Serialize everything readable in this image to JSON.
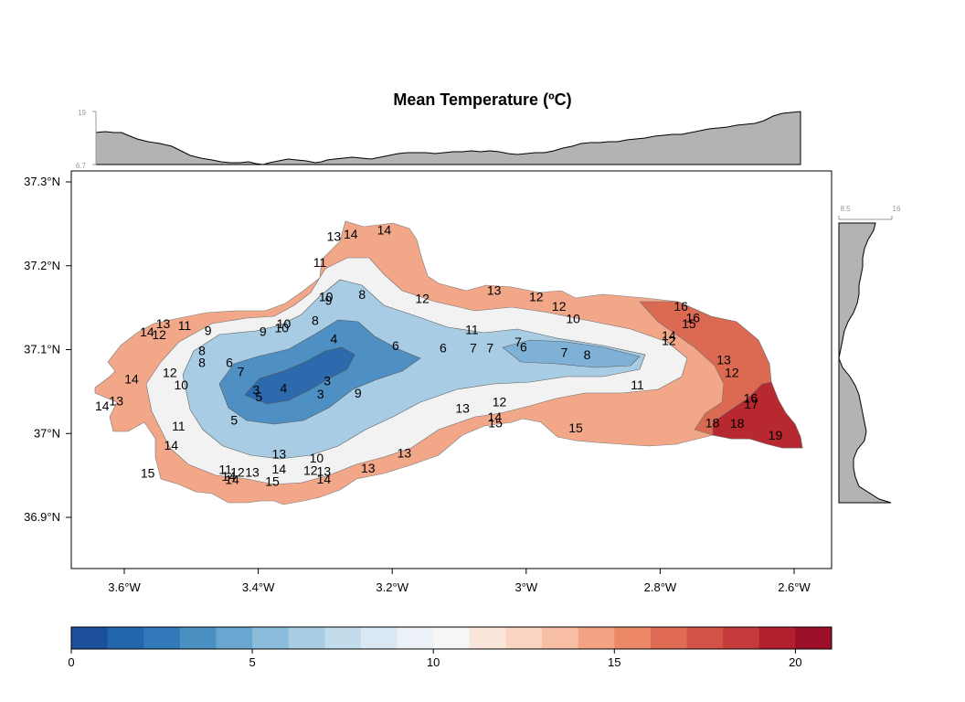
{
  "title": "Mean Temperature (ºC)",
  "top_profile": {
    "max_label": "19",
    "min_label": "6.7"
  },
  "right_profile": {
    "min_label": "8.5",
    "max_label": "16"
  },
  "map": {
    "lon_ticks": [
      {
        "value": -3.6,
        "label": "3.6°W"
      },
      {
        "value": -3.4,
        "label": "3.4°W"
      },
      {
        "value": -3.2,
        "label": "3.2°W"
      },
      {
        "value": -3.0,
        "label": "3°W"
      },
      {
        "value": -2.8,
        "label": "2.8°W"
      },
      {
        "value": -2.6,
        "label": "2.6°W"
      }
    ],
    "lat_ticks": [
      {
        "value": 37.3,
        "label": "37.3°N"
      },
      {
        "value": 37.2,
        "label": "37.2°N"
      },
      {
        "value": 37.1,
        "label": "37.1°N"
      },
      {
        "value": 37.0,
        "label": "37°N"
      },
      {
        "value": 36.9,
        "label": "36.9°N"
      }
    ],
    "contour_labels": [
      {
        "t": "13",
        "lon": -3.287,
        "lat": 37.235
      },
      {
        "t": "14",
        "lon": -3.262,
        "lat": 37.238
      },
      {
        "t": "14",
        "lon": -3.212,
        "lat": 37.243
      },
      {
        "t": "11",
        "lon": -3.308,
        "lat": 37.204
      },
      {
        "t": "8",
        "lon": -3.245,
        "lat": 37.166
      },
      {
        "t": "10",
        "lon": -3.299,
        "lat": 37.163
      },
      {
        "t": "9",
        "lon": -3.295,
        "lat": 37.159
      },
      {
        "t": "8",
        "lon": -3.315,
        "lat": 37.135
      },
      {
        "t": "10",
        "lon": -3.362,
        "lat": 37.131
      },
      {
        "t": "10",
        "lon": -3.365,
        "lat": 37.126
      },
      {
        "t": "9",
        "lon": -3.393,
        "lat": 37.122
      },
      {
        "t": "12",
        "lon": -3.155,
        "lat": 37.161
      },
      {
        "t": "13",
        "lon": -3.048,
        "lat": 37.171
      },
      {
        "t": "12",
        "lon": -2.985,
        "lat": 37.163
      },
      {
        "t": "12",
        "lon": -2.951,
        "lat": 37.152
      },
      {
        "t": "10",
        "lon": -2.93,
        "lat": 37.137
      },
      {
        "t": "16",
        "lon": -2.769,
        "lat": 37.152
      },
      {
        "t": "16",
        "lon": -2.751,
        "lat": 37.138
      },
      {
        "t": "15",
        "lon": -2.757,
        "lat": 37.131
      },
      {
        "t": "13",
        "lon": -3.542,
        "lat": 37.131
      },
      {
        "t": "14",
        "lon": -3.566,
        "lat": 37.121
      },
      {
        "t": "12",
        "lon": -3.548,
        "lat": 37.118
      },
      {
        "t": "11",
        "lon": -3.51,
        "lat": 37.129
      },
      {
        "t": "9",
        "lon": -3.475,
        "lat": 37.123
      },
      {
        "t": "11",
        "lon": -3.081,
        "lat": 37.124
      },
      {
        "t": "4",
        "lon": -3.287,
        "lat": 37.113
      },
      {
        "t": "6",
        "lon": -3.195,
        "lat": 37.105
      },
      {
        "t": "6",
        "lon": -3.124,
        "lat": 37.102
      },
      {
        "t": "7",
        "lon": -3.079,
        "lat": 37.102
      },
      {
        "t": "7",
        "lon": -3.054,
        "lat": 37.102
      },
      {
        "t": "7",
        "lon": -3.012,
        "lat": 37.109
      },
      {
        "t": "6",
        "lon": -3.004,
        "lat": 37.103
      },
      {
        "t": "7",
        "lon": -2.943,
        "lat": 37.097
      },
      {
        "t": "8",
        "lon": -2.909,
        "lat": 37.094
      },
      {
        "t": "14",
        "lon": -2.787,
        "lat": 37.117
      },
      {
        "t": "12",
        "lon": -2.787,
        "lat": 37.111
      },
      {
        "t": "8",
        "lon": -3.484,
        "lat": 37.099
      },
      {
        "t": "8",
        "lon": -3.484,
        "lat": 37.085
      },
      {
        "t": "6",
        "lon": -3.443,
        "lat": 37.085
      },
      {
        "t": "7",
        "lon": -3.426,
        "lat": 37.074
      },
      {
        "t": "13",
        "lon": -2.705,
        "lat": 37.088
      },
      {
        "t": "12",
        "lon": -2.693,
        "lat": 37.073
      },
      {
        "t": "14",
        "lon": -3.589,
        "lat": 37.065
      },
      {
        "t": "12",
        "lon": -3.532,
        "lat": 37.073
      },
      {
        "t": "10",
        "lon": -3.515,
        "lat": 37.058
      },
      {
        "t": "3",
        "lon": -3.297,
        "lat": 37.063
      },
      {
        "t": "4",
        "lon": -3.362,
        "lat": 37.054
      },
      {
        "t": "3",
        "lon": -3.403,
        "lat": 37.052
      },
      {
        "t": "5",
        "lon": -3.399,
        "lat": 37.044
      },
      {
        "t": "3",
        "lon": -3.307,
        "lat": 37.047
      },
      {
        "t": "9",
        "lon": -3.251,
        "lat": 37.048
      },
      {
        "t": "11",
        "lon": -2.834,
        "lat": 37.058
      },
      {
        "t": "13",
        "lon": -3.612,
        "lat": 37.039
      },
      {
        "t": "14",
        "lon": -3.633,
        "lat": 37.033
      },
      {
        "t": "12",
        "lon": -3.04,
        "lat": 37.038
      },
      {
        "t": "13",
        "lon": -3.095,
        "lat": 37.03
      },
      {
        "t": "16",
        "lon": -2.665,
        "lat": 37.042
      },
      {
        "t": "17",
        "lon": -2.664,
        "lat": 37.035
      },
      {
        "t": "14",
        "lon": -3.047,
        "lat": 37.02
      },
      {
        "t": "15",
        "lon": -3.046,
        "lat": 37.013
      },
      {
        "t": "5",
        "lon": -3.436,
        "lat": 37.016
      },
      {
        "t": "11",
        "lon": -3.519,
        "lat": 37.009
      },
      {
        "t": "18",
        "lon": -2.722,
        "lat": 37.013
      },
      {
        "t": "18",
        "lon": -2.685,
        "lat": 37.012
      },
      {
        "t": "15",
        "lon": -2.926,
        "lat": 37.007
      },
      {
        "t": "19",
        "lon": -2.628,
        "lat": 36.998
      },
      {
        "t": "14",
        "lon": -3.53,
        "lat": 36.986
      },
      {
        "t": "13",
        "lon": -3.369,
        "lat": 36.976
      },
      {
        "t": "10",
        "lon": -3.313,
        "lat": 36.971
      },
      {
        "t": "13",
        "lon": -3.182,
        "lat": 36.977
      },
      {
        "t": "13",
        "lon": -3.236,
        "lat": 36.959
      },
      {
        "t": "14",
        "lon": -3.369,
        "lat": 36.958
      },
      {
        "t": "12",
        "lon": -3.322,
        "lat": 36.956
      },
      {
        "t": "13",
        "lon": -3.302,
        "lat": 36.955
      },
      {
        "t": "14",
        "lon": -3.302,
        "lat": 36.946
      },
      {
        "t": "15",
        "lon": -3.565,
        "lat": 36.953
      },
      {
        "t": "11",
        "lon": -3.449,
        "lat": 36.957
      },
      {
        "t": "12",
        "lon": -3.431,
        "lat": 36.954
      },
      {
        "t": "13",
        "lon": -3.409,
        "lat": 36.954
      },
      {
        "t": "14",
        "lon": -3.444,
        "lat": 36.949
      },
      {
        "t": "14",
        "lon": -3.439,
        "lat": 36.945
      },
      {
        "t": "15",
        "lon": -3.379,
        "lat": 36.943
      }
    ]
  },
  "colorbar": {
    "min": 0,
    "max": 21,
    "step": 1,
    "tick_labels": [
      {
        "value": 0,
        "label": "0"
      },
      {
        "value": 5,
        "label": "5"
      },
      {
        "value": 10,
        "label": "10"
      },
      {
        "value": 15,
        "label": "15"
      },
      {
        "value": 20,
        "label": "20"
      }
    ],
    "colors": [
      "#1c4f9c",
      "#2266ad",
      "#3279b9",
      "#4a90c2",
      "#69a7d0",
      "#8bbcdb",
      "#a9cee4",
      "#c3dcec",
      "#d9e8f2",
      "#ebf1f6",
      "#f6f6f6",
      "#fbe6dc",
      "#f9d4c1",
      "#f7bea4",
      "#f3a384",
      "#ec8865",
      "#e06b54",
      "#d35247",
      "#c53a3a",
      "#b22030",
      "#9b0f28"
    ]
  }
}
